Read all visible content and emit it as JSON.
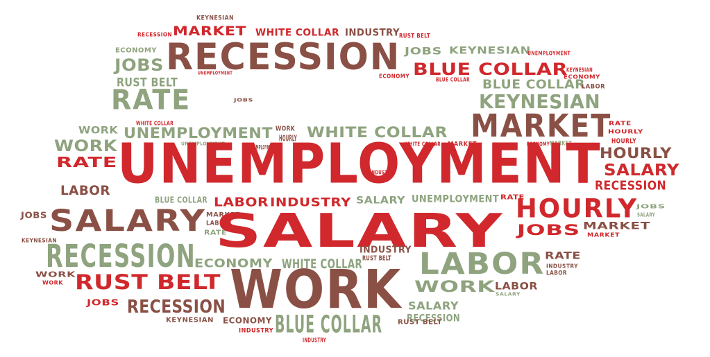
{
  "palette": {
    "red": "#d0282c",
    "brown": "#8a5045",
    "green": "#8ea37e"
  },
  "words": [
    {
      "text": "KEYNESIAN",
      "color": "brown"
    },
    {
      "text": "RECESSION",
      "color": "red"
    },
    {
      "text": "MARKET",
      "color": "red"
    },
    {
      "text": "WHITE COLLAR",
      "color": "red"
    },
    {
      "text": "INDUSTRY",
      "color": "brown"
    },
    {
      "text": "RUST BELT",
      "color": "red"
    },
    {
      "text": "ECONOMY",
      "color": "green"
    },
    {
      "text": "RECESSION",
      "color": "brown"
    },
    {
      "text": "JOBS",
      "color": "green"
    },
    {
      "text": "KEYNESIAN",
      "color": "green"
    },
    {
      "text": "UNEMPLOYMENT",
      "color": "red"
    },
    {
      "text": "JOBS",
      "color": "green"
    },
    {
      "text": "UNEMPLOYMENT",
      "color": "red"
    },
    {
      "text": "ECONOMY",
      "color": "red"
    },
    {
      "text": "BLUE COLLAR",
      "color": "red"
    },
    {
      "text": "KEYNESIAN",
      "color": "red"
    },
    {
      "text": "RUST BELT",
      "color": "green"
    },
    {
      "text": "BLUE COLLAR",
      "color": "red"
    },
    {
      "text": "BLUE COLLAR",
      "color": "green"
    },
    {
      "text": "ECONOMY",
      "color": "red"
    },
    {
      "text": "LABOR",
      "color": "brown"
    },
    {
      "text": "RATE",
      "color": "green"
    },
    {
      "text": "JOBS",
      "color": "brown"
    },
    {
      "text": "KEYNESIAN",
      "color": "green"
    },
    {
      "text": "WHITE COLLAR",
      "color": "red"
    },
    {
      "text": "MARKET",
      "color": "brown"
    },
    {
      "text": "WORK",
      "color": "green"
    },
    {
      "text": "UNEMPLOYMENT",
      "color": "green"
    },
    {
      "text": "WORK",
      "color": "brown"
    },
    {
      "text": "RATE",
      "color": "red"
    },
    {
      "text": "WHITE COLLAR",
      "color": "green"
    },
    {
      "text": "HOURLY",
      "color": "red"
    },
    {
      "text": "HOURLY",
      "color": "brown"
    },
    {
      "text": "WORK",
      "color": "green"
    },
    {
      "text": "UNEMPLOYMENT",
      "color": "green"
    },
    {
      "text": "HOURLY",
      "color": "red"
    },
    {
      "text": "WHITE COLLAR",
      "color": "red"
    },
    {
      "text": "MARKET",
      "color": "red"
    },
    {
      "text": "ECONOMY",
      "color": "red"
    },
    {
      "text": "UNEMPLOYMENT",
      "color": "brown"
    },
    {
      "text": "HOURLY",
      "color": "brown"
    },
    {
      "text": "MARKET",
      "color": "green"
    },
    {
      "text": "UNEMPLOYMENT",
      "color": "red"
    },
    {
      "text": "RATE",
      "color": "red"
    },
    {
      "text": "SALARY",
      "color": "red"
    },
    {
      "text": "INDUSTRY",
      "color": "red"
    },
    {
      "text": "LABOR",
      "color": "brown"
    },
    {
      "text": "RECESSION",
      "color": "red"
    },
    {
      "text": "BLUE COLLAR",
      "color": "green"
    },
    {
      "text": "LABOR",
      "color": "red"
    },
    {
      "text": "INDUSTRY",
      "color": "red"
    },
    {
      "text": "SALARY",
      "color": "green"
    },
    {
      "text": "UNEMPLOYMENT",
      "color": "green"
    },
    {
      "text": "RATE",
      "color": "red"
    },
    {
      "text": "HOURLY",
      "color": "red"
    },
    {
      "text": "JOBS",
      "color": "brown"
    },
    {
      "text": "SALARY",
      "color": "brown"
    },
    {
      "text": "MARKET",
      "color": "brown"
    },
    {
      "text": "LABOR",
      "color": "brown"
    },
    {
      "text": "JOBS",
      "color": "green"
    },
    {
      "text": "RATE",
      "color": "green"
    },
    {
      "text": "MARKET",
      "color": "brown"
    },
    {
      "text": "SALARY",
      "color": "green"
    },
    {
      "text": "SALARY",
      "color": "red"
    },
    {
      "text": "JOBS",
      "color": "red"
    },
    {
      "text": "MARKET",
      "color": "red"
    },
    {
      "text": "KEYNESIAN",
      "color": "brown"
    },
    {
      "text": "RECESSION",
      "color": "green"
    },
    {
      "text": "INDUSTRY",
      "color": "brown"
    },
    {
      "text": "RUST BELT",
      "color": "brown"
    },
    {
      "text": "RATE",
      "color": "brown"
    },
    {
      "text": "INDUSTRY",
      "color": "brown"
    },
    {
      "text": "LABOR",
      "color": "brown"
    },
    {
      "text": "LABOR",
      "color": "green"
    },
    {
      "text": "ECONOMY",
      "color": "green"
    },
    {
      "text": "WHITE COLLAR",
      "color": "green"
    },
    {
      "text": "WORK",
      "color": "brown"
    },
    {
      "text": "WORK",
      "color": "red"
    },
    {
      "text": "RUST BELT",
      "color": "red"
    },
    {
      "text": "WORK",
      "color": "brown"
    },
    {
      "text": "WORK",
      "color": "green"
    },
    {
      "text": "LABOR",
      "color": "brown"
    },
    {
      "text": "SALARY",
      "color": "green"
    },
    {
      "text": "JOBS",
      "color": "red"
    },
    {
      "text": "RECESSION",
      "color": "brown"
    },
    {
      "text": "SALARY",
      "color": "green"
    },
    {
      "text": "RECESSION",
      "color": "green"
    },
    {
      "text": "KEYNESIAN",
      "color": "brown"
    },
    {
      "text": "ECONOMY",
      "color": "brown"
    },
    {
      "text": "BLUE COLLAR",
      "color": "green"
    },
    {
      "text": "RUST BELT",
      "color": "brown"
    },
    {
      "text": "INDUSTRY",
      "color": "red"
    },
    {
      "text": "INDUSTRY",
      "color": "red"
    }
  ]
}
